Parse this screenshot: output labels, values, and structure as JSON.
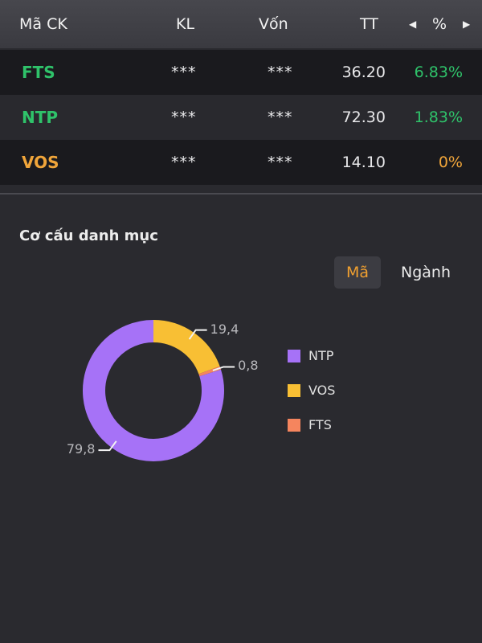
{
  "header": {
    "symbol": "Mã CK",
    "volume": "KL",
    "capital": "Vốn",
    "price": "TT",
    "prev_arrow": "◀",
    "percent": "%",
    "next_arrow": "▶"
  },
  "holdings": [
    {
      "symbol": "FTS",
      "volume": "***",
      "capital": "***",
      "price": "36.20",
      "percent": "6.83%",
      "color": "#2fc26a"
    },
    {
      "symbol": "NTP",
      "volume": "***",
      "capital": "***",
      "price": "72.30",
      "percent": "1.83%",
      "color": "#2fc26a"
    },
    {
      "symbol": "VOS",
      "volume": "***",
      "capital": "***",
      "price": "14.10",
      "percent": "0%",
      "color": "#f0a53a"
    }
  ],
  "portfolio": {
    "title": "Cơ cấu danh mục",
    "tabs": {
      "code": "Mã",
      "industry": "Ngành",
      "active": "code"
    }
  },
  "chart_data": {
    "type": "pie",
    "donut": true,
    "categories": [
      "NTP",
      "VOS",
      "FTS"
    ],
    "values": [
      79.8,
      19.4,
      0.8
    ],
    "value_labels": [
      "79,8",
      "19,4",
      "0,8"
    ],
    "colors": [
      "#a672f7",
      "#f8bf34",
      "#f5855e"
    ],
    "legend": "right"
  }
}
